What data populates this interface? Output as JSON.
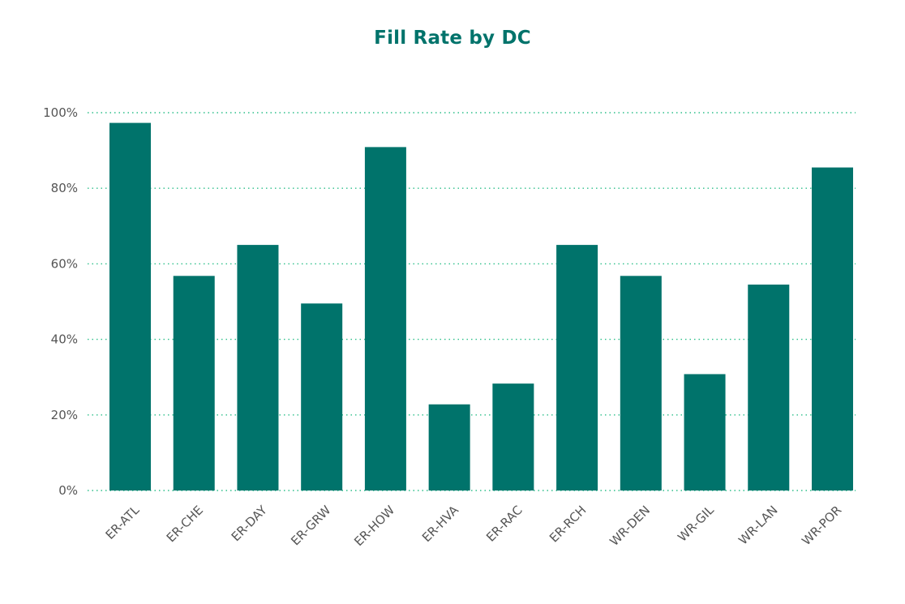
{
  "chart_data": {
    "type": "bar",
    "title": "Fill Rate by DC",
    "xlabel": "",
    "ylabel": "",
    "categories": [
      "ER-ATL",
      "ER-CHE",
      "ER-DAY",
      "ER-GRW",
      "ER-HOW",
      "ER-HVA",
      "ER-RAC",
      "ER-RCH",
      "WR-DEN",
      "WR-GIL",
      "WR-LAN",
      "WR-POR"
    ],
    "values": [
      97.3,
      56.8,
      65.0,
      49.5,
      90.9,
      22.8,
      28.3,
      65.0,
      56.8,
      30.8,
      54.5,
      85.5
    ],
    "ylim": [
      0,
      100
    ],
    "yticks": [
      0,
      20,
      40,
      60,
      80,
      100
    ],
    "ytick_labels": [
      "0%",
      "20%",
      "40%",
      "60%",
      "80%",
      "100%"
    ],
    "grid": true,
    "legend": "none",
    "colors": {
      "bar": "#00736b",
      "title": "#00736b",
      "grid": "#2dbf8a",
      "tick_text": "#555555"
    }
  }
}
